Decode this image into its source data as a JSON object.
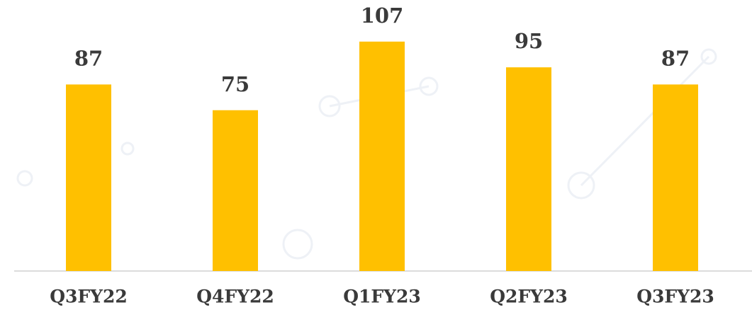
{
  "chart_data": {
    "type": "bar",
    "categories": [
      "Q3FY22",
      "Q4FY22",
      "Q1FY23",
      "Q2FY23",
      "Q3FY23"
    ],
    "values": [
      87,
      75,
      107,
      95,
      87
    ],
    "color": "#ffc000"
  }
}
